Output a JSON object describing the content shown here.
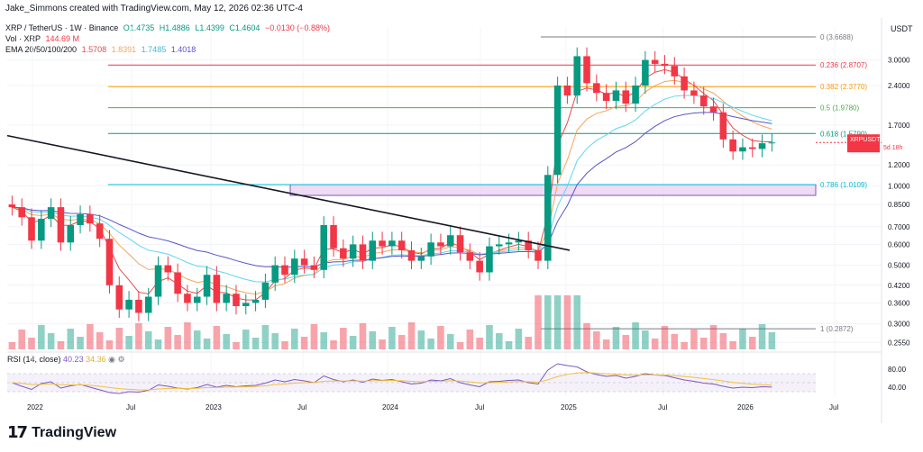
{
  "header": {
    "attribution": "Jake_Simmons created with TradingView.com, May 12, 2026 02:36 UTC-4",
    "symbol_line": "XRP / TetherUS · 1W · Binance",
    "ohlc": {
      "o": "O1.4735",
      "h": "H1.4886",
      "l": "L1.4399",
      "c": "C1.4604",
      "chg": "−0.0130 (−0.88%)"
    },
    "vol_label": "Vol · XRP",
    "vol_value": "144.69 M",
    "ema_label": "EMA 20/50/100/200",
    "ema_values": [
      "1.5708",
      "1.8391",
      "1.7485",
      "1.4018"
    ],
    "currency": "USDT",
    "logo_text": "TradingView"
  },
  "rsi": {
    "label": "RSI (14, close)",
    "value": "40.23",
    "ma": "34.36"
  },
  "colors": {
    "up": "#089981",
    "down": "#f23645",
    "ema20": "#e84a4a",
    "ema50": "#f5a55a",
    "ema100": "#5fd6f0",
    "ema200": "#5a55c8",
    "rsi": "#7e57c2",
    "rsi_ma": "#f0c23a"
  },
  "chart_data": {
    "type": "candlestick",
    "symbol": "XRPUSDT",
    "last_price": "1.4604",
    "countdown": "5d 18h",
    "y_scale": "log",
    "y_ticks": [
      "3.0000",
      "2.4000",
      "1.7000",
      "1.2000",
      "1.0000",
      "0.8500",
      "0.7000",
      "0.6000",
      "0.5000",
      "0.4200",
      "0.3600",
      "0.3000",
      "0.2550"
    ],
    "x_ticks": [
      "2022",
      "Jul",
      "2023",
      "Jul",
      "2024",
      "Jul",
      "2025",
      "Jul",
      "2026",
      "Jul"
    ],
    "fib_levels": [
      {
        "label": "0 (3.6688)",
        "price": 3.6688,
        "color": "#787b86"
      },
      {
        "label": "0.236 (2.8707)",
        "price": 2.8707,
        "color": "#f23645"
      },
      {
        "label": "0.382 (2.3770)",
        "price": 2.377,
        "color": "#ff9800"
      },
      {
        "label": "0.5 (1.9780)",
        "price": 1.978,
        "color": "#4caf50"
      },
      {
        "label": "0.618 (1.5790)",
        "price": 1.579,
        "color": "#089981"
      },
      {
        "label": "0.786 (1.0109)",
        "price": 1.0109,
        "color": "#00bcd4"
      },
      {
        "label": "1 (0.2872)",
        "price": 0.2872,
        "color": "#787b86"
      }
    ],
    "support_zone": {
      "low": 0.92,
      "high": 1.0109
    },
    "trendline": {
      "from": [
        "2021-12",
        1.55
      ],
      "to": [
        "2024-12",
        0.57
      ]
    },
    "close_series": [
      0.83,
      0.76,
      0.62,
      0.75,
      0.83,
      0.61,
      0.71,
      0.78,
      0.72,
      0.63,
      0.42,
      0.34,
      0.37,
      0.33,
      0.38,
      0.5,
      0.47,
      0.39,
      0.36,
      0.38,
      0.46,
      0.36,
      0.39,
      0.35,
      0.36,
      0.37,
      0.43,
      0.5,
      0.46,
      0.53,
      0.5,
      0.48,
      0.71,
      0.58,
      0.53,
      0.6,
      0.52,
      0.62,
      0.59,
      0.62,
      0.57,
      0.52,
      0.54,
      0.61,
      0.59,
      0.65,
      0.56,
      0.52,
      0.47,
      0.59,
      0.6,
      0.61,
      0.62,
      0.57,
      0.52,
      1.1,
      2.4,
      2.2,
      3.1,
      2.45,
      2.25,
      2.1,
      2.3,
      2.05,
      2.4,
      3.0,
      2.9,
      2.85,
      2.6,
      2.3,
      2.2,
      2.0,
      1.9,
      1.5,
      1.35,
      1.4,
      1.38,
      1.45,
      1.46
    ],
    "rsi_series": [
      50,
      42,
      35,
      48,
      52,
      38,
      43,
      46,
      40,
      34,
      28,
      26,
      30,
      29,
      33,
      45,
      42,
      38,
      36,
      39,
      46,
      40,
      44,
      41,
      43,
      44,
      49,
      56,
      52,
      57,
      54,
      50,
      65,
      57,
      52,
      56,
      51,
      58,
      55,
      57,
      52,
      47,
      49,
      56,
      54,
      59,
      50,
      45,
      41,
      52,
      53,
      55,
      56,
      50,
      47,
      78,
      92,
      88,
      85,
      74,
      68,
      64,
      66,
      60,
      64,
      70,
      67,
      66,
      61,
      56,
      53,
      49,
      47,
      42,
      38,
      40,
      39,
      41,
      40.23
    ],
    "ylabel": "",
    "xlabel": ""
  }
}
